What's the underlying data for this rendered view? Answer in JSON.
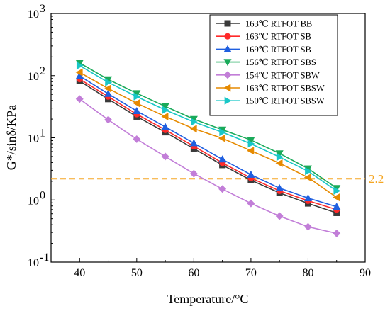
{
  "chart_data": {
    "type": "line",
    "xlabel": "Temperature/°C",
    "ylabel": "G*/sinδ/KPa",
    "xlim": [
      35,
      90
    ],
    "ylim": [
      0.1,
      1000
    ],
    "yscale": "log",
    "grid": false,
    "legend_position": "top-right",
    "x_ticks": [
      "40",
      "50",
      "60",
      "70",
      "80",
      "90"
    ],
    "y_ticks": [
      {
        "value": 0.1,
        "base": "10",
        "exp": "-1"
      },
      {
        "value": 1,
        "base": "10",
        "exp": "0"
      },
      {
        "value": 10,
        "base": "10",
        "exp": "1"
      },
      {
        "value": 100,
        "base": "10",
        "exp": "2"
      },
      {
        "value": 1000,
        "base": "10",
        "exp": "3"
      }
    ],
    "x": [
      40,
      45,
      50,
      55,
      60,
      65,
      70,
      75,
      80,
      85
    ],
    "series": [
      {
        "name": "163℃ RTFOT BB",
        "color": "#3a3a3a",
        "marker": "square",
        "values": [
          82,
          42,
          22,
          12.3,
          6.7,
          3.65,
          2.08,
          1.3,
          0.88,
          0.62
        ]
      },
      {
        "name": "163℃ RTFOT SB",
        "color": "#ff2a2a",
        "marker": "circle",
        "values": [
          88,
          46,
          24,
          13.4,
          7.3,
          3.95,
          2.25,
          1.4,
          0.97,
          0.7
        ]
      },
      {
        "name": "169℃ RTFOT SB",
        "color": "#1f5fe0",
        "marker": "triangle-up",
        "values": [
          99,
          51,
          27,
          15,
          8.2,
          4.5,
          2.55,
          1.55,
          1.07,
          0.78
        ]
      },
      {
        "name": "156℃ RTFOT SBS",
        "color": "#1aaa5a",
        "marker": "triangle-down",
        "values": [
          160,
          87,
          52,
          32,
          20,
          13.5,
          9.2,
          5.6,
          3.2,
          1.55
        ]
      },
      {
        "name": "154℃ RTFOT SBW",
        "color": "#c27ed8",
        "marker": "diamond",
        "values": [
          42,
          19.5,
          9.5,
          5,
          2.65,
          1.5,
          0.88,
          0.55,
          0.37,
          0.29
        ]
      },
      {
        "name": "163℃ RTFOT SBSW",
        "color": "#e68a00",
        "marker": "triangle-left",
        "values": [
          113,
          62,
          36,
          22,
          14,
          9.8,
          6.2,
          3.9,
          2.3,
          1.1
        ]
      },
      {
        "name": "150℃ RTFOT SBSW",
        "color": "#19c7c7",
        "marker": "triangle-right",
        "values": [
          145,
          78,
          46,
          28,
          18,
          12.3,
          8,
          4.9,
          2.9,
          1.4
        ]
      }
    ],
    "annotations": [
      {
        "type": "hline",
        "y": 2.2,
        "color": "#f5a623",
        "style": "dashed",
        "label": "2.2"
      }
    ]
  }
}
